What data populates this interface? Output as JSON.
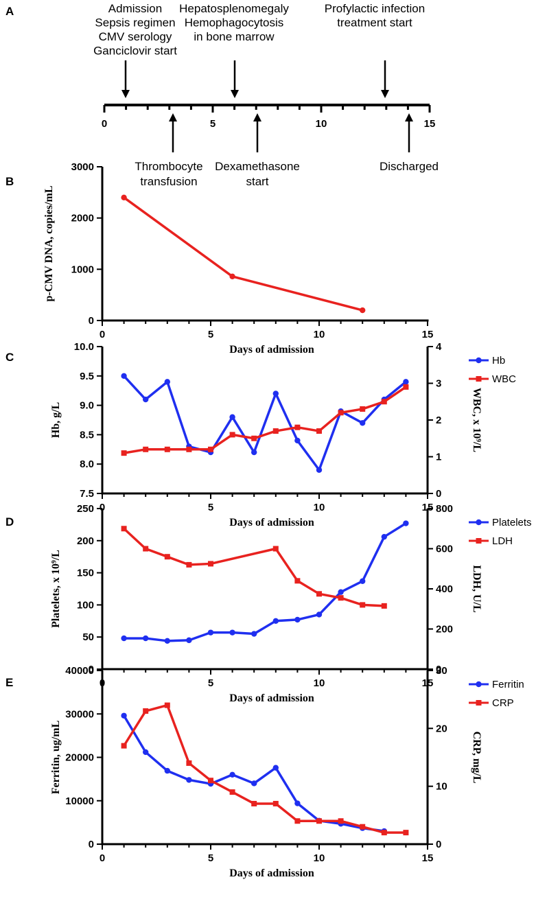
{
  "colors": {
    "blue": "#1f2ff0",
    "red": "#e8221f",
    "axis": "#000000"
  },
  "timeline": {
    "letter": "A",
    "range": [
      0,
      15
    ],
    "tick_labels": [
      "0",
      "5",
      "10",
      "15"
    ],
    "events_above": [
      {
        "day": 1,
        "lines": [
          "Admission",
          "Sepsis regimen",
          "CMV serology",
          "Ganciclovir start"
        ]
      },
      {
        "day": 6,
        "lines": [
          "Hepatosplenomegaly",
          "Hemophagocytosis",
          "in bone marrow"
        ]
      },
      {
        "day": 13,
        "lines": [
          "Profylactic infection",
          "treatment start"
        ]
      }
    ],
    "events_below": [
      {
        "day": 3,
        "lines": [
          "Thrombocyte",
          "transfusion"
        ]
      },
      {
        "day": 7,
        "lines": [
          "Dexamethasone",
          "start"
        ]
      },
      {
        "day": 14,
        "lines": [
          "Discharged"
        ]
      }
    ]
  },
  "chart_data": [
    {
      "letter": "B",
      "type": "line",
      "xlabel": "Days of admission",
      "xlim": [
        0,
        15
      ],
      "x_ticks": [
        "0",
        "5",
        "10",
        "15"
      ],
      "ylabel": "p-CMV DNA, copies/mL",
      "ylim": [
        0,
        3000
      ],
      "y_ticks": [
        "0",
        "1000",
        "2000",
        "3000"
      ],
      "series": [
        {
          "name": "p-CMV DNA",
          "color": "#e8221f",
          "marker": "circle",
          "axis": "left",
          "x": [
            1,
            6,
            12
          ],
          "values": [
            2400,
            860,
            200
          ]
        }
      ]
    },
    {
      "letter": "C",
      "type": "line",
      "xlabel": "Days of admission",
      "xlim": [
        0,
        15
      ],
      "x_ticks": [
        "0",
        "5",
        "10",
        "15"
      ],
      "ylabel": "Hb, g/L",
      "ylim": [
        7.5,
        10.0
      ],
      "y_ticks": [
        "7.5",
        "8.0",
        "8.5",
        "9.0",
        "9.5",
        "10.0"
      ],
      "ylabel_right": "WBC, x 10⁹/L",
      "ylim_right": [
        0,
        4
      ],
      "y_ticks_right": [
        "0",
        "1",
        "2",
        "3",
        "4"
      ],
      "legend": [
        "Hb",
        "WBC"
      ],
      "series": [
        {
          "name": "Hb",
          "color": "#1f2ff0",
          "marker": "circle",
          "axis": "left",
          "x": [
            1,
            2,
            3,
            4,
            5,
            6,
            7,
            8,
            9,
            10,
            11,
            12,
            13,
            14
          ],
          "values": [
            9.5,
            9.1,
            9.4,
            8.3,
            8.2,
            8.8,
            8.2,
            9.2,
            8.4,
            7.9,
            8.9,
            8.7,
            9.1,
            9.4
          ]
        },
        {
          "name": "WBC",
          "color": "#e8221f",
          "marker": "square",
          "axis": "right",
          "x": [
            1,
            2,
            3,
            4,
            5,
            6,
            7,
            8,
            9,
            10,
            11,
            12,
            13,
            14
          ],
          "values": [
            1.1,
            1.2,
            1.2,
            1.2,
            1.2,
            1.6,
            1.5,
            1.7,
            1.8,
            1.7,
            2.2,
            2.3,
            2.5,
            2.9
          ]
        }
      ]
    },
    {
      "letter": "D",
      "type": "line",
      "xlabel": "Days of admission",
      "xlim": [
        0,
        15
      ],
      "x_ticks": [
        "0",
        "5",
        "10",
        "15"
      ],
      "ylabel": "Platelets, x 10⁹/L",
      "ylim": [
        0,
        250
      ],
      "y_ticks": [
        "0",
        "50",
        "100",
        "150",
        "200",
        "250"
      ],
      "ylabel_right": "LDH, U/L",
      "ylim_right": [
        0,
        800
      ],
      "y_ticks_right": [
        "0",
        "200",
        "400",
        "600",
        "800"
      ],
      "legend": [
        "Platelets",
        "LDH"
      ],
      "series": [
        {
          "name": "Platelets",
          "color": "#1f2ff0",
          "marker": "circle",
          "axis": "left",
          "x": [
            1,
            2,
            3,
            4,
            5,
            6,
            7,
            8,
            9,
            10,
            11,
            12,
            13,
            14
          ],
          "values": [
            48,
            48,
            44,
            45,
            57,
            57,
            55,
            75,
            77,
            85,
            120,
            137,
            206,
            227
          ]
        },
        {
          "name": "LDH",
          "color": "#e8221f",
          "marker": "square",
          "axis": "right",
          "x": [
            1,
            2,
            3,
            4,
            5,
            8,
            9,
            10,
            11,
            12,
            13
          ],
          "values": [
            700,
            600,
            560,
            520,
            525,
            600,
            440,
            375,
            355,
            320,
            315
          ]
        }
      ]
    },
    {
      "letter": "E",
      "type": "line",
      "xlabel": "Days of admission",
      "xlim": [
        0,
        15
      ],
      "x_ticks": [
        "0",
        "5",
        "10",
        "15"
      ],
      "ylabel": "Ferritin, ug/mL",
      "ylim": [
        0,
        40000
      ],
      "y_ticks": [
        "0",
        "10000",
        "20000",
        "30000",
        "40000"
      ],
      "ylabel_right": "CRP, mg/L",
      "ylim_right": [
        0,
        30
      ],
      "y_ticks_right": [
        "0",
        "10",
        "20",
        "30"
      ],
      "legend": [
        "Ferritin",
        "CRP"
      ],
      "series": [
        {
          "name": "Ferritin",
          "color": "#1f2ff0",
          "marker": "circle",
          "axis": "left",
          "x": [
            1,
            2,
            3,
            4,
            5,
            6,
            7,
            8,
            9,
            10,
            11,
            12,
            13
          ],
          "values": [
            29600,
            21200,
            16900,
            14800,
            13900,
            16000,
            14000,
            17600,
            9400,
            5400,
            4700,
            3700,
            3000
          ]
        },
        {
          "name": "CRP",
          "color": "#e8221f",
          "marker": "square",
          "axis": "right",
          "x": [
            1,
            2,
            3,
            4,
            5,
            6,
            7,
            8,
            9,
            10,
            11,
            12,
            13,
            14
          ],
          "values": [
            17,
            23,
            24,
            14,
            11,
            9,
            7,
            7,
            4,
            4,
            4,
            3,
            2,
            2
          ]
        }
      ]
    }
  ]
}
